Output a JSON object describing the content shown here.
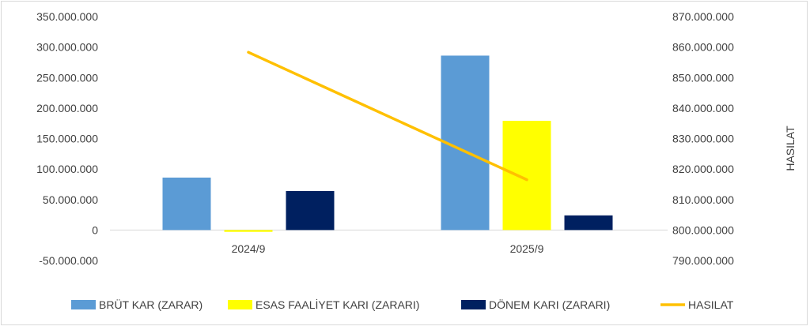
{
  "chart_data": {
    "type": "bar",
    "categories": [
      "2024/9",
      "2025/9"
    ],
    "series": [
      {
        "name": "BRÜT KAR (ZARAR)",
        "axis": "left",
        "color": "#5b9bd5",
        "values": [
          86000000,
          286000000
        ]
      },
      {
        "name": "ESAS FAALİYET KARI (ZARARI)",
        "axis": "left",
        "color": "#ffff00",
        "values": [
          -3000000,
          179000000
        ]
      },
      {
        "name": "DÖNEM KARI (ZARARI)",
        "axis": "left",
        "color": "#002060",
        "values": [
          64000000,
          24000000
        ]
      },
      {
        "name": "HASILAT",
        "axis": "right",
        "type": "line",
        "color": "#ffc000",
        "values": [
          858300000,
          816500000
        ]
      }
    ],
    "left_axis": {
      "ylim": [
        -50000000,
        350000000
      ],
      "ticks": [
        "350.000.000",
        "300.000.000",
        "250.000.000",
        "200.000.000",
        "150.000.000",
        "100.000.000",
        "50.000.000",
        "0",
        "-50.000.000"
      ],
      "tick_values": [
        350000000,
        300000000,
        250000000,
        200000000,
        150000000,
        100000000,
        50000000,
        0,
        -50000000
      ]
    },
    "right_axis": {
      "label": "HASILAT",
      "ylim": [
        790000000,
        870000000
      ],
      "ticks": [
        "870.000.000",
        "860.000.000",
        "850.000.000",
        "840.000.000",
        "830.000.000",
        "820.000.000",
        "810.000.000",
        "800.000.000",
        "790.000.000"
      ],
      "tick_values": [
        870000000,
        860000000,
        850000000,
        840000000,
        830000000,
        820000000,
        810000000,
        800000000,
        790000000
      ]
    },
    "grid": false,
    "legend_position": "bottom"
  }
}
